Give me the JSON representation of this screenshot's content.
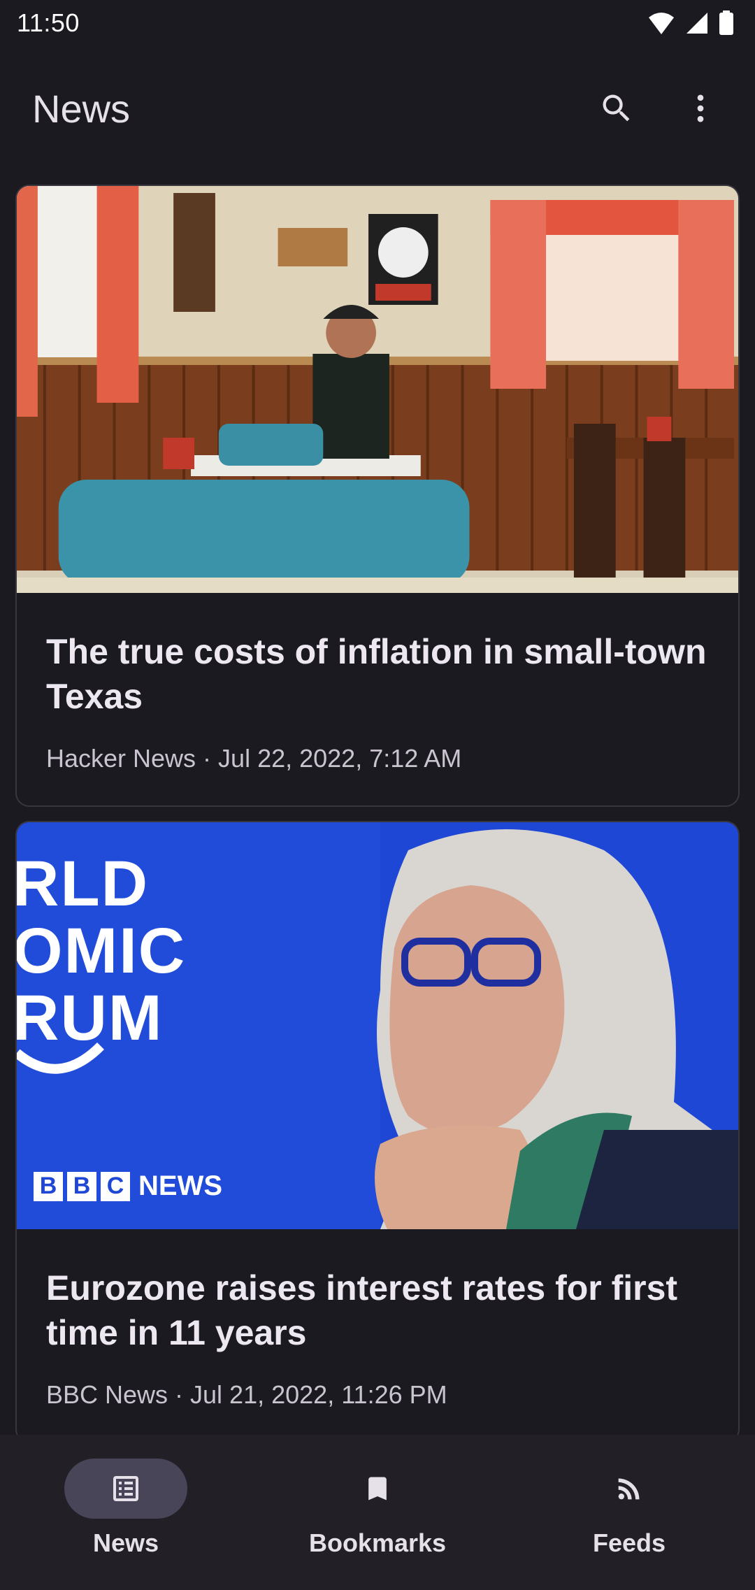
{
  "status_bar": {
    "time": "11:50"
  },
  "app_bar": {
    "title": "News",
    "search_icon": "search-icon",
    "more_icon": "more-vert-icon"
  },
  "articles": [
    {
      "title": "The true costs of inflation in small-town Texas",
      "meta": "Hacker News · Jul 22, 2022, 7:12 AM",
      "image": "diner-photo"
    },
    {
      "title": "Eurozone raises interest rates for first time in 11 years",
      "meta": "BBC News · Jul 21, 2022, 11:26 PM",
      "image": "forum-photo",
      "image_text": {
        "logo_letters": [
          "B",
          "B",
          "C"
        ],
        "logo_word": "NEWS",
        "background_lines": [
          "RLD",
          "OMIC",
          "RUM"
        ]
      }
    }
  ],
  "nav": {
    "items": [
      {
        "label": "News",
        "icon": "article-icon",
        "active": true
      },
      {
        "label": "Bookmarks",
        "icon": "bookmark-icon",
        "active": false
      },
      {
        "label": "Feeds",
        "icon": "rss-icon",
        "active": false
      }
    ]
  },
  "colors": {
    "background": "#1b1a20",
    "nav_background": "#221f27",
    "nav_active_pill": "#494559",
    "forum_blue": "#1f47d6"
  }
}
